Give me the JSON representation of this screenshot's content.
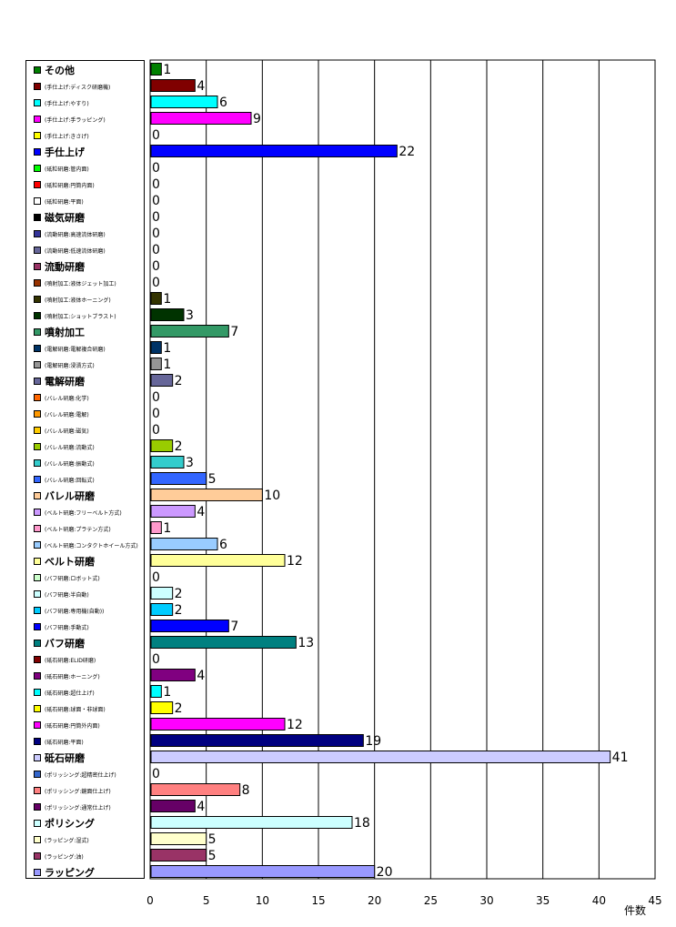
{
  "chart_data": {
    "type": "bar",
    "orientation": "horizontal",
    "xlabel": "件数",
    "xlim": [
      0,
      45
    ],
    "xticks": [
      0,
      5,
      10,
      15,
      20,
      25,
      30,
      35,
      40,
      45
    ],
    "grid": true,
    "legend_position": "left",
    "categories": [
      {
        "label": "その他",
        "main": true,
        "value": 1,
        "color": "#008000"
      },
      {
        "label": "(手仕上げ:ディスク研磨機)",
        "main": false,
        "value": 4,
        "color": "#800000"
      },
      {
        "label": "(手仕上げ:やすり)",
        "main": false,
        "value": 6,
        "color": "#00FFFF"
      },
      {
        "label": "(手仕上げ:手ラッピング)",
        "main": false,
        "value": 9,
        "color": "#FF00FF"
      },
      {
        "label": "(手仕上げ:きさげ)",
        "main": false,
        "value": 0,
        "color": "#FFFF00"
      },
      {
        "label": "手仕上げ",
        "main": true,
        "value": 22,
        "color": "#0000FF"
      },
      {
        "label": "(砥粒研磨:管内面)",
        "main": false,
        "value": 0,
        "color": "#00FF00"
      },
      {
        "label": "(砥粒研磨:円筒内面)",
        "main": false,
        "value": 0,
        "color": "#FF0000"
      },
      {
        "label": "(砥粒研磨:平面)",
        "main": false,
        "value": 0,
        "color": "#FFFFFF"
      },
      {
        "label": "磁気研磨",
        "main": true,
        "value": 0,
        "color": "#000000"
      },
      {
        "label": "(流動研磨:高速流体研磨)",
        "main": false,
        "value": 0,
        "color": "#333399"
      },
      {
        "label": "(流動研磨:低速流体研磨)",
        "main": false,
        "value": 0,
        "color": "#666699"
      },
      {
        "label": "流動研磨",
        "main": true,
        "value": 0,
        "color": "#993366"
      },
      {
        "label": "(噴射加工:液体ジェット加工)",
        "main": false,
        "value": 0,
        "color": "#993300"
      },
      {
        "label": "(噴射加工:液体ホーニング)",
        "main": false,
        "value": 1,
        "color": "#333300"
      },
      {
        "label": "(噴射加工:ショットブラスト)",
        "main": false,
        "value": 3,
        "color": "#003300"
      },
      {
        "label": "噴射加工",
        "main": true,
        "value": 7,
        "color": "#339966"
      },
      {
        "label": "(電解研磨:電解複合研磨)",
        "main": false,
        "value": 1,
        "color": "#003366"
      },
      {
        "label": "(電解研磨:浸漬方式)",
        "main": false,
        "value": 1,
        "color": "#969696"
      },
      {
        "label": "電解研磨",
        "main": true,
        "value": 2,
        "color": "#666699"
      },
      {
        "label": "(バレル研磨:化学)",
        "main": false,
        "value": 0,
        "color": "#FF6600"
      },
      {
        "label": "(バレル研磨:電解)",
        "main": false,
        "value": 0,
        "color": "#FF9900"
      },
      {
        "label": "(バレル研磨:磁気)",
        "main": false,
        "value": 0,
        "color": "#FFCC00"
      },
      {
        "label": "(バレル研磨:流動式)",
        "main": false,
        "value": 2,
        "color": "#99CC00"
      },
      {
        "label": "(バレル研磨:振動式)",
        "main": false,
        "value": 3,
        "color": "#33CCCC"
      },
      {
        "label": "(バレル研磨:回転式)",
        "main": false,
        "value": 5,
        "color": "#3366FF"
      },
      {
        "label": "バレル研磨",
        "main": true,
        "value": 10,
        "color": "#FFCC99"
      },
      {
        "label": "(ベルト研磨:フリーベルト方式)",
        "main": false,
        "value": 4,
        "color": "#CC99FF"
      },
      {
        "label": "(ベルト研磨:プラテン方式)",
        "main": false,
        "value": 1,
        "color": "#FF99CC"
      },
      {
        "label": "(ベルト研磨:コンタクトホイール方式)",
        "main": false,
        "value": 6,
        "color": "#99CCFF"
      },
      {
        "label": "ベルト研磨",
        "main": true,
        "value": 12,
        "color": "#FFFF99"
      },
      {
        "label": "(バフ研磨:ロボット式)",
        "main": false,
        "value": 0,
        "color": "#CCFFCC"
      },
      {
        "label": "(バフ研磨:半自動)",
        "main": false,
        "value": 2,
        "color": "#CCFFFF"
      },
      {
        "label": "(バフ研磨:専用機(自動))",
        "main": false,
        "value": 2,
        "color": "#00CCFF"
      },
      {
        "label": "(バフ研磨:手動式)",
        "main": false,
        "value": 7,
        "color": "#0000FF"
      },
      {
        "label": "バフ研磨",
        "main": true,
        "value": 13,
        "color": "#008080"
      },
      {
        "label": "(砥石研磨:ELID研磨)",
        "main": false,
        "value": 0,
        "color": "#800000"
      },
      {
        "label": "(砥石研磨:ホーニング)",
        "main": false,
        "value": 4,
        "color": "#800080"
      },
      {
        "label": "(砥石研磨:超仕上げ)",
        "main": false,
        "value": 1,
        "color": "#00FFFF"
      },
      {
        "label": "(砥石研磨:球面・非球面)",
        "main": false,
        "value": 2,
        "color": "#FFFF00"
      },
      {
        "label": "(砥石研磨:円筒外内面)",
        "main": false,
        "value": 12,
        "color": "#FF00FF"
      },
      {
        "label": "(砥石研磨:平面)",
        "main": false,
        "value": 19,
        "color": "#000080"
      },
      {
        "label": "砥石研磨",
        "main": true,
        "value": 41,
        "color": "#CCCCFF"
      },
      {
        "label": "(ポリッシング:超精密仕上げ)",
        "main": false,
        "value": 0,
        "color": "#3366CC"
      },
      {
        "label": "(ポリッシング:鏡面仕上げ)",
        "main": false,
        "value": 8,
        "color": "#FF8080"
      },
      {
        "label": "(ポリッシング:通常仕上げ)",
        "main": false,
        "value": 4,
        "color": "#660066"
      },
      {
        "label": "ポリシング",
        "main": true,
        "value": 18,
        "color": "#CCFFFF"
      },
      {
        "label": "(ラッピング:湿式)",
        "main": false,
        "value": 5,
        "color": "#FFFFCC"
      },
      {
        "label": "(ラッピング:油)",
        "main": false,
        "value": 5,
        "color": "#993366"
      },
      {
        "label": "ラッピング",
        "main": true,
        "value": 20,
        "color": "#9999FF"
      }
    ]
  }
}
